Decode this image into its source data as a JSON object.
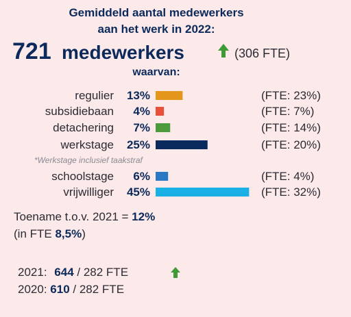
{
  "header": {
    "title_line1": "Gemiddeld aantal medewerkers",
    "title_line2": "aan het werk in 2022:"
  },
  "headline": {
    "count": "721",
    "unit": "medewerkers",
    "fte": "(306 FTE)"
  },
  "subheading": "waarvan:",
  "chart_data": {
    "type": "bar",
    "orientation": "horizontal",
    "categories": [
      "regulier",
      "subsidiebaan",
      "detachering",
      "werkstage",
      "schoolstage",
      "vrijwilliger"
    ],
    "values": [
      13,
      4,
      7,
      25,
      6,
      45
    ],
    "value_labels": [
      "13%",
      "4%",
      "7%",
      "25%",
      "6%",
      "45%"
    ],
    "colors": [
      "#e3961b",
      "#e8503a",
      "#4b9a3c",
      "#0a2a5e",
      "#2a77c4",
      "#1ab0e6"
    ],
    "fte_labels": [
      "(FTE: 23%)",
      "(FTE: 7%)",
      "(FTE: 14%)",
      "(FTE: 20%)",
      "(FTE: 4%)",
      "(FTE: 32%)"
    ],
    "footnote": "*Werkstage inclusief taakstraf"
  },
  "increase": {
    "line1_text": "Toename t.o.v. 2021 =",
    "line1_value": "12%",
    "line2_text": "(in FTE",
    "line2_value": "8,5%",
    "line2_end": ")"
  },
  "history": [
    {
      "year": "2021:",
      "count": "644",
      "fte": "/ 282 FTE"
    },
    {
      "year": "2020:",
      "count": "610",
      "fte": "/ 282 FTE"
    }
  ]
}
